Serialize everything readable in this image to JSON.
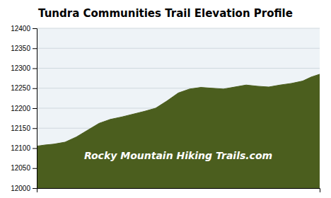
{
  "chart_data": {
    "type": "area",
    "title": "Tundra Communities Trail Elevation Profile",
    "annotations": [
      "Rocky Mountain Hiking Trails.com"
    ],
    "x": [
      0.0,
      0.03,
      0.06,
      0.1,
      0.14,
      0.18,
      0.22,
      0.26,
      0.3,
      0.34,
      0.38,
      0.42,
      0.46,
      0.5,
      0.54,
      0.58,
      0.62,
      0.66,
      0.7,
      0.74,
      0.78,
      0.82,
      0.86,
      0.9,
      0.94,
      0.97,
      1.0
    ],
    "values": [
      12105,
      12108,
      12110,
      12115,
      12128,
      12145,
      12162,
      12172,
      12178,
      12185,
      12192,
      12200,
      12218,
      12238,
      12248,
      12252,
      12250,
      12248,
      12253,
      12258,
      12255,
      12253,
      12258,
      12262,
      12268,
      12278,
      12285
    ],
    "color": "#4b5e1e",
    "xlim": [
      0,
      1
    ],
    "ylim": [
      12000,
      12400
    ],
    "yticks": [
      12000,
      12050,
      12100,
      12150,
      12200,
      12250,
      12300,
      12350,
      12400
    ],
    "grid": true,
    "tick_labels": "y"
  }
}
